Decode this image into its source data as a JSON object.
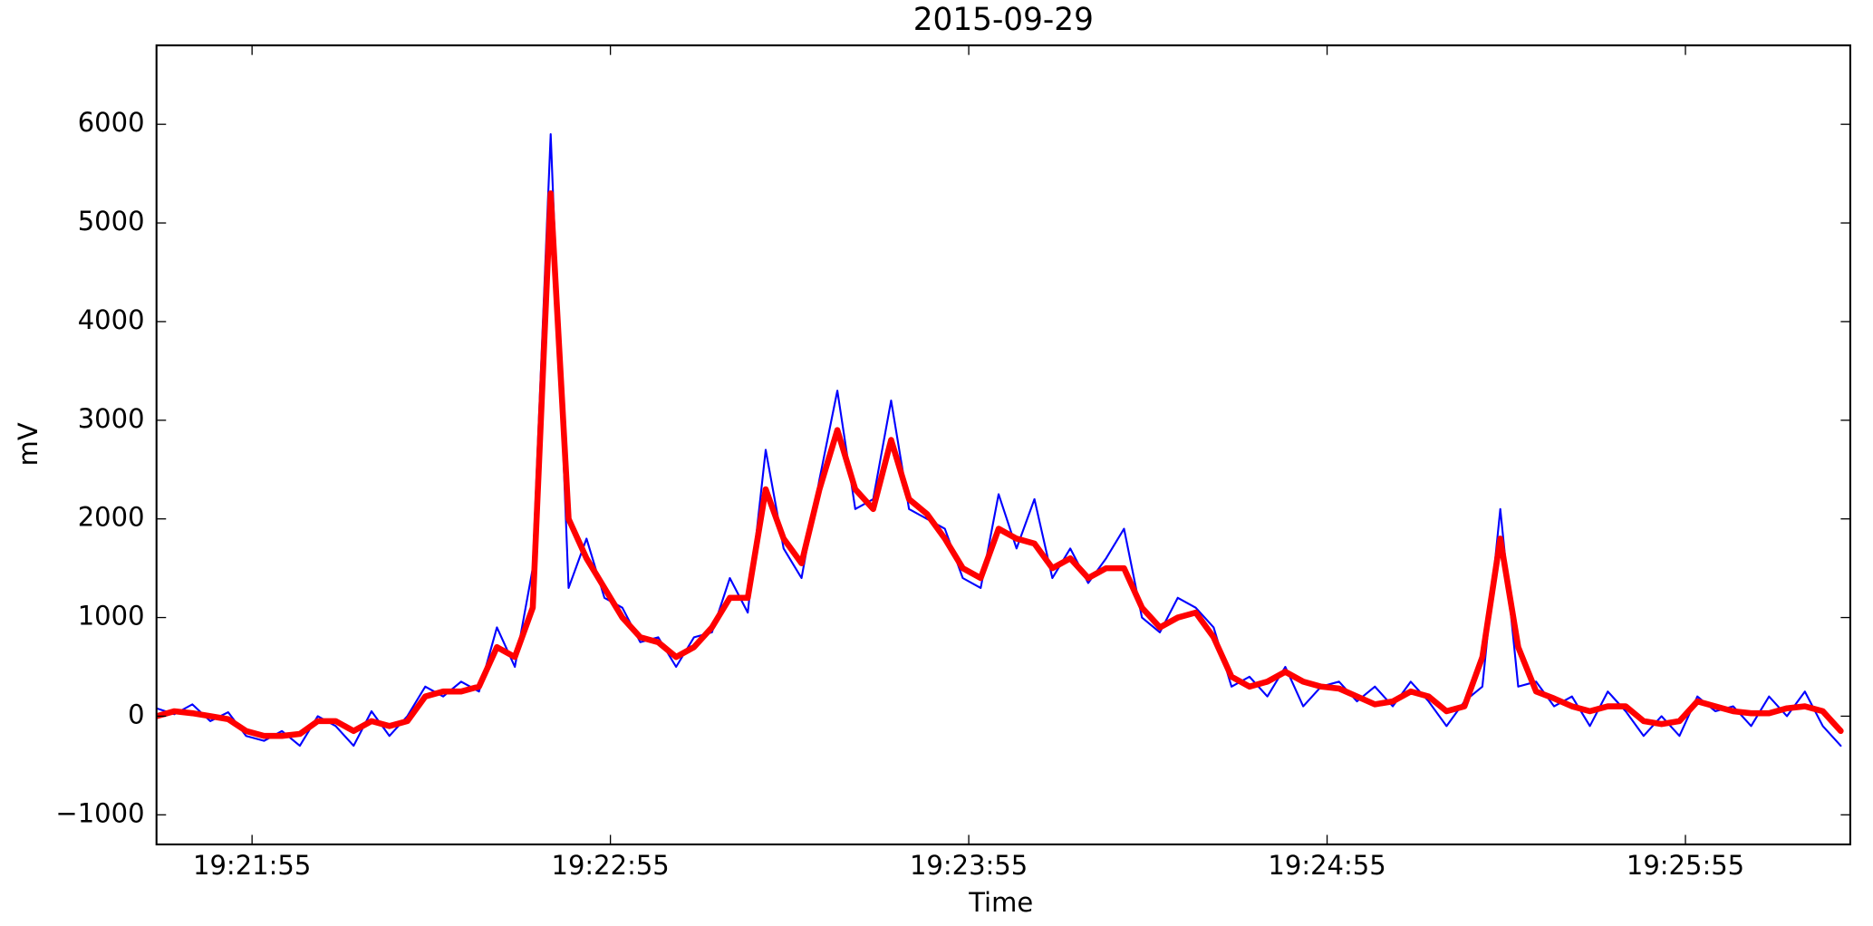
{
  "chart_data": {
    "type": "line",
    "title": "2015-09-29",
    "x_label": "Time",
    "y_label": "mV",
    "x": [
      "19:21:39",
      "19:21:42",
      "19:21:45",
      "19:21:48",
      "19:21:51",
      "19:21:54",
      "19:21:57",
      "19:22:00",
      "19:22:03",
      "19:22:06",
      "19:22:09",
      "19:22:12",
      "19:22:15",
      "19:22:18",
      "19:22:21",
      "19:22:24",
      "19:22:27",
      "19:22:30",
      "19:22:33",
      "19:22:36",
      "19:22:39",
      "19:22:42",
      "19:22:45",
      "19:22:48",
      "19:22:51",
      "19:22:54",
      "19:22:57",
      "19:23:00",
      "19:23:03",
      "19:23:06",
      "19:23:09",
      "19:23:12",
      "19:23:15",
      "19:23:18",
      "19:23:21",
      "19:23:24",
      "19:23:27",
      "19:23:30",
      "19:23:33",
      "19:23:36",
      "19:23:39",
      "19:23:42",
      "19:23:45",
      "19:23:48",
      "19:23:51",
      "19:23:54",
      "19:23:57",
      "19:24:00",
      "19:24:03",
      "19:24:06",
      "19:24:09",
      "19:24:12",
      "19:24:15",
      "19:24:18",
      "19:24:21",
      "19:24:24",
      "19:24:27",
      "19:24:30",
      "19:24:33",
      "19:24:36",
      "19:24:39",
      "19:24:42",
      "19:24:45",
      "19:24:48",
      "19:24:51",
      "19:24:54",
      "19:24:57",
      "19:25:00",
      "19:25:03",
      "19:25:06",
      "19:25:09",
      "19:25:12",
      "19:25:15",
      "19:25:18",
      "19:25:21",
      "19:25:24",
      "19:25:27",
      "19:25:30",
      "19:25:33",
      "19:25:36",
      "19:25:39",
      "19:25:42",
      "19:25:45",
      "19:25:48",
      "19:25:51",
      "19:25:54",
      "19:25:57",
      "19:26:00",
      "19:26:03",
      "19:26:06",
      "19:26:09",
      "19:26:12",
      "19:26:15",
      "19:26:18",
      "19:26:21"
    ],
    "series": [
      {
        "color": "#0000ff",
        "values": [
          80,
          20,
          120,
          -50,
          40,
          -200,
          -250,
          -150,
          -300,
          0,
          -100,
          -300,
          50,
          -200,
          0,
          300,
          200,
          350,
          250,
          900,
          500,
          1500,
          5900,
          1300,
          1800,
          1200,
          1100,
          750,
          800,
          500,
          800,
          850,
          1400,
          1050,
          2700,
          1700,
          1400,
          2400,
          3300,
          2100,
          2200,
          3200,
          2100,
          2000,
          1900,
          1400,
          1300,
          2250,
          1700,
          2200,
          1400,
          1700,
          1350,
          1600,
          1900,
          1000,
          850,
          1200,
          1100,
          900,
          300,
          400,
          200,
          500,
          100,
          300,
          350,
          150,
          300,
          100,
          350,
          150,
          -100,
          150,
          300,
          2100,
          300,
          350,
          100,
          200,
          -100,
          250,
          50,
          -200,
          0,
          -200,
          200,
          50,
          100,
          -100,
          200,
          0,
          250,
          -100,
          -300
        ]
      },
      {
        "color": "#ff0000",
        "values": [
          0,
          50,
          30,
          0,
          -30,
          -150,
          -200,
          -200,
          -180,
          -50,
          -50,
          -150,
          -50,
          -100,
          -50,
          200,
          250,
          250,
          300,
          700,
          600,
          1100,
          5300,
          2000,
          1600,
          1300,
          1000,
          800,
          750,
          600,
          700,
          900,
          1200,
          1200,
          2300,
          1800,
          1550,
          2300,
          2900,
          2300,
          2100,
          2800,
          2200,
          2050,
          1800,
          1500,
          1400,
          1900,
          1800,
          1750,
          1500,
          1600,
          1400,
          1500,
          1500,
          1100,
          900,
          1000,
          1050,
          800,
          400,
          300,
          350,
          450,
          350,
          300,
          280,
          200,
          120,
          150,
          250,
          200,
          50,
          100,
          600,
          1800,
          700,
          250,
          180,
          100,
          50,
          100,
          100,
          -50,
          -80,
          -50,
          150,
          100,
          50,
          30,
          30,
          80,
          100,
          50,
          -150
        ]
      }
    ],
    "xlim": [
      "19:21:39",
      "19:26:22.6"
    ],
    "xticks": [
      "19:21:55",
      "19:22:55",
      "19:23:55",
      "19:24:55",
      "19:25:55"
    ],
    "ylim": [
      -1300,
      6800
    ],
    "yticks": [
      {
        "value": -1000,
        "label": "−1000"
      },
      0,
      1000,
      2000,
      3000,
      4000,
      5000,
      6000
    ]
  }
}
